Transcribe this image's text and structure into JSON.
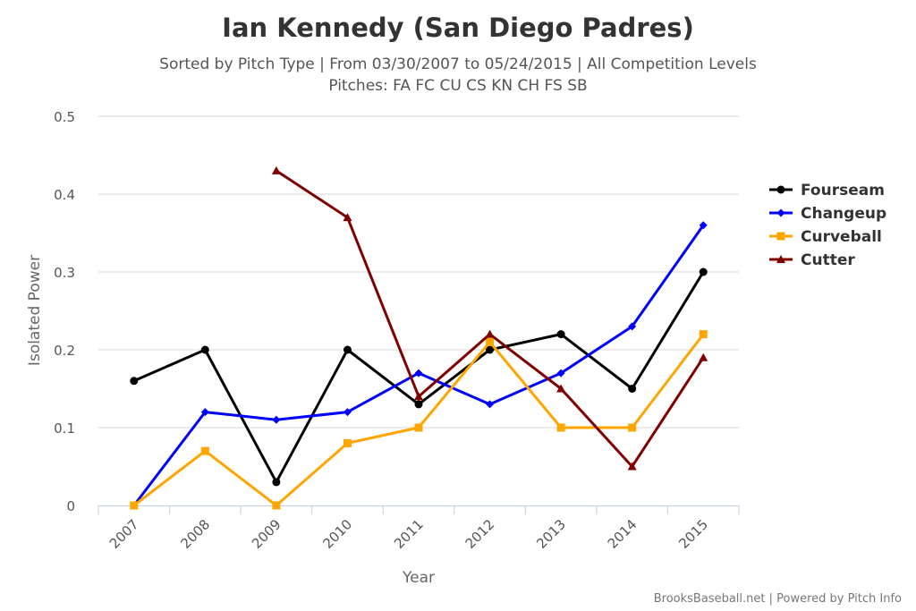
{
  "chart_data": {
    "type": "line",
    "title": "Ian Kennedy (San Diego Padres)",
    "subtitle_lines": [
      "Sorted by Pitch Type | From 03/30/2007 to 05/24/2015 | All Competition Levels",
      "Pitches: FA FC CU CS KN CH FS SB"
    ],
    "xlabel": "Year",
    "ylabel": "Isolated Power",
    "categories": [
      "2007",
      "2008",
      "2009",
      "2010",
      "2011",
      "2012",
      "2013",
      "2014",
      "2015"
    ],
    "yticks": [
      "0",
      "0.1",
      "0.2",
      "0.3",
      "0.4",
      "0.5"
    ],
    "ylim": [
      0,
      0.5
    ],
    "grid": "horizontal",
    "legend_position": "right",
    "series": [
      {
        "name": "Fourseam",
        "color": "#000000",
        "marker": "circle",
        "values": [
          0.16,
          0.2,
          0.03,
          0.2,
          0.13,
          0.2,
          0.22,
          0.15,
          0.3
        ]
      },
      {
        "name": "Changeup",
        "color": "#0000ff",
        "marker": "diamond",
        "values": [
          0.0,
          0.12,
          0.11,
          0.12,
          0.17,
          0.13,
          0.17,
          0.23,
          0.36
        ]
      },
      {
        "name": "Curveball",
        "color": "#ffa500",
        "marker": "square",
        "values": [
          0.0,
          0.07,
          0.0,
          0.08,
          0.1,
          0.21,
          0.1,
          0.1,
          0.22
        ]
      },
      {
        "name": "Cutter",
        "color": "#800000",
        "marker": "triangle",
        "values": [
          null,
          null,
          0.43,
          0.37,
          0.14,
          0.22,
          0.15,
          0.05,
          0.19
        ]
      }
    ],
    "credits": "BrooksBaseball.net | Powered by Pitch Info"
  }
}
